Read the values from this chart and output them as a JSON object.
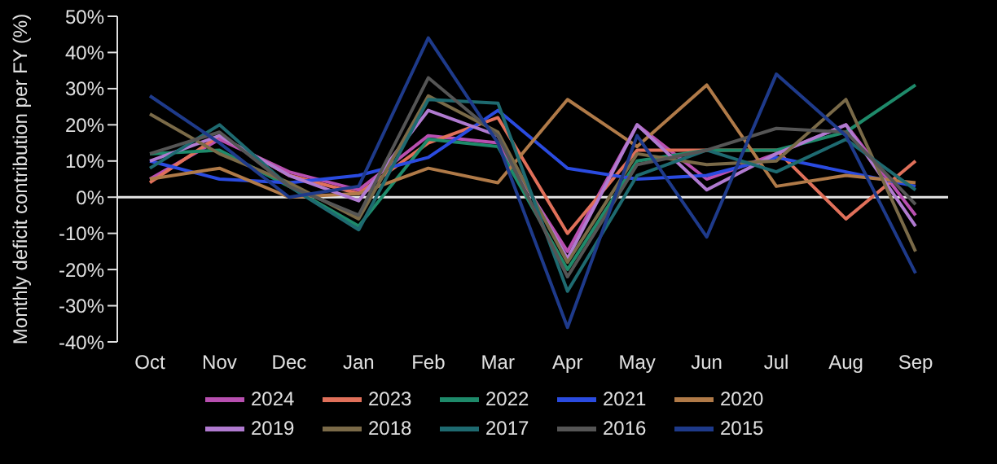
{
  "chart_data": {
    "type": "line",
    "ylabel": "Monthly deficit contribution per FY (%)",
    "categories": [
      "Oct",
      "Nov",
      "Dec",
      "Jan",
      "Feb",
      "Mar",
      "Apr",
      "May",
      "Jun",
      "Jul",
      "Aug",
      "Sep"
    ],
    "series": [
      {
        "name": "2024",
        "color": "#b84fb0",
        "values": [
          5,
          16,
          7,
          2,
          17,
          15,
          -15,
          20,
          5,
          12,
          20,
          -5
        ]
      },
      {
        "name": "2023",
        "color": "#e0705a",
        "values": [
          4,
          17,
          6,
          1,
          15,
          22,
          -10,
          13,
          13,
          13,
          -6,
          10
        ]
      },
      {
        "name": "2022",
        "color": "#1e8a6a",
        "values": [
          12,
          13,
          3,
          -8,
          16,
          14,
          -20,
          10,
          13,
          13,
          18,
          31
        ]
      },
      {
        "name": "2021",
        "color": "#2a4be0",
        "values": [
          10,
          5,
          4,
          6,
          11,
          24,
          8,
          5,
          6,
          11,
          7,
          3
        ]
      },
      {
        "name": "2020",
        "color": "#b07a48",
        "values": [
          5,
          8,
          0,
          1,
          8,
          4,
          27,
          14,
          31,
          3,
          6,
          4
        ]
      },
      {
        "name": "2019",
        "color": "#b07ad0",
        "values": [
          10,
          17,
          6,
          -1,
          24,
          17,
          -17,
          20,
          2,
          12,
          20,
          -8
        ]
      },
      {
        "name": "2018",
        "color": "#7a6a48",
        "values": [
          23,
          12,
          4,
          -6,
          28,
          18,
          -18,
          12,
          9,
          10,
          27,
          -15
        ]
      },
      {
        "name": "2017",
        "color": "#1e6a70",
        "values": [
          8,
          20,
          3,
          -9,
          27,
          26,
          -26,
          6,
          13,
          7,
          16,
          2
        ]
      },
      {
        "name": "2016",
        "color": "#555555",
        "values": [
          12,
          18,
          3,
          -5,
          33,
          17,
          -22,
          9,
          13,
          19,
          18,
          -2
        ]
      },
      {
        "name": "2015",
        "color": "#1e3a8a",
        "values": [
          28,
          15,
          0,
          3,
          44,
          15,
          -36,
          17,
          -11,
          34,
          17,
          -21
        ]
      }
    ],
    "ylim": [
      -40,
      50
    ],
    "yticks": [
      {
        "value": -40,
        "label": "-40%"
      },
      {
        "value": -30,
        "label": "-30%"
      },
      {
        "value": -20,
        "label": "-20%"
      },
      {
        "value": -10,
        "label": "-10%"
      },
      {
        "value": 0,
        "label": "0%"
      },
      {
        "value": 10,
        "label": "10%"
      },
      {
        "value": 20,
        "label": "20%"
      },
      {
        "value": 30,
        "label": "30%"
      },
      {
        "value": 40,
        "label": "40%"
      },
      {
        "value": 50,
        "label": "50%"
      }
    ],
    "ref_lines": [
      {
        "axis": "y",
        "value": 0,
        "color": "#e6e6e6"
      }
    ],
    "grid": false,
    "legend": "bottom",
    "marker": "none",
    "line_style": "solid"
  }
}
